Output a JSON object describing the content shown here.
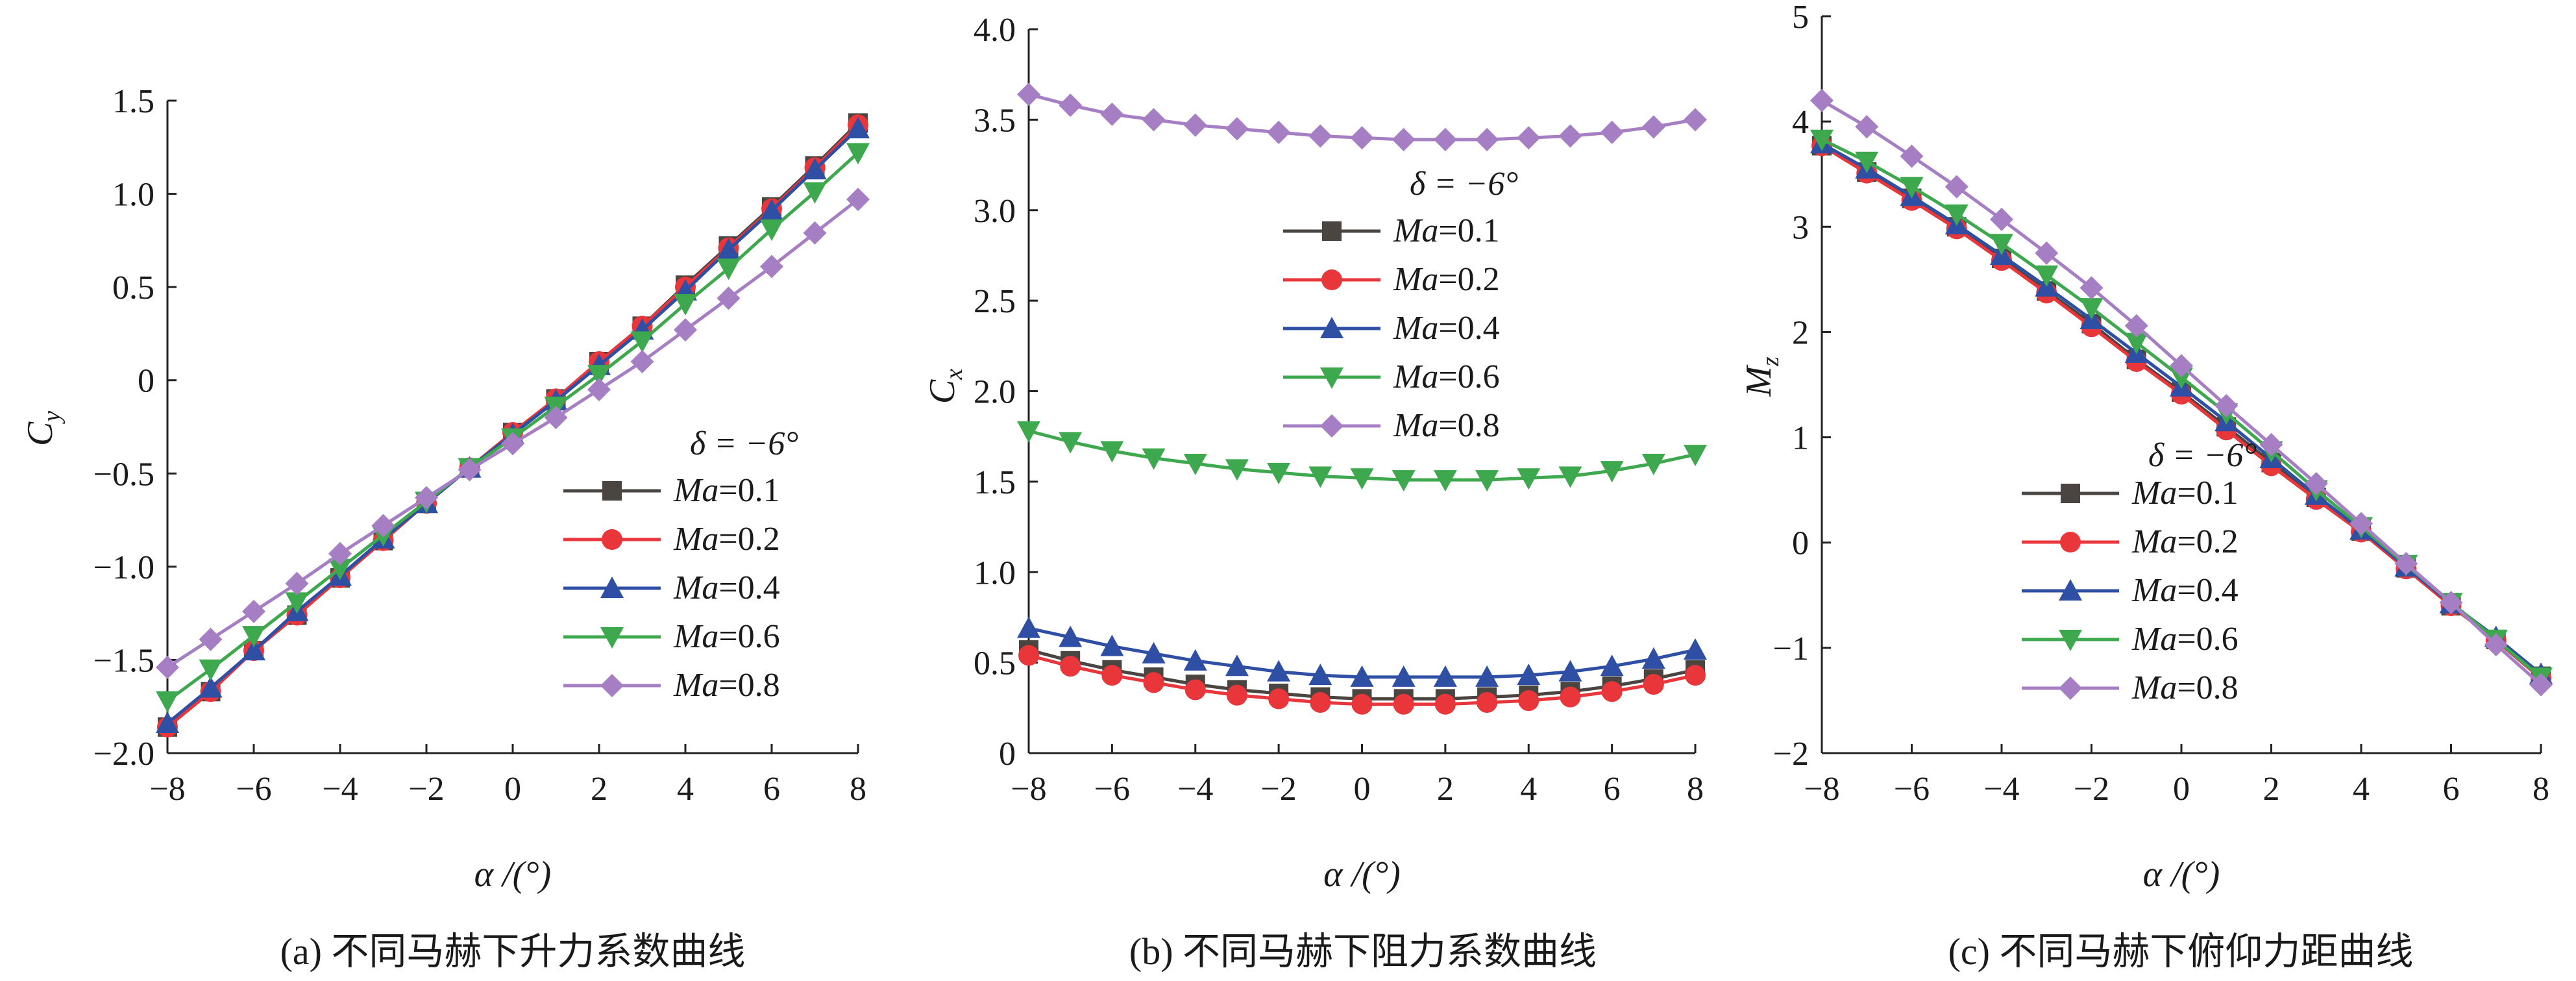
{
  "chart_data": [
    {
      "type": "line",
      "caption": "(a) 不同马赫下升力系数曲线",
      "xlabel": "α /(°)",
      "ylabel_main": "C",
      "ylabel_sub": "y",
      "xlim": [
        -8,
        8
      ],
      "ylim": [
        -2.0,
        1.5
      ],
      "x_ticks": [
        -8,
        -6,
        -4,
        -2,
        0,
        2,
        4,
        6,
        8
      ],
      "x_tick_labels": [
        "−8",
        "−6",
        "−4",
        "−2",
        "0",
        "2",
        "4",
        "6",
        "8"
      ],
      "y_ticks": [
        -2.0,
        -1.5,
        -1.0,
        -0.5,
        0,
        0.5,
        1.0,
        1.5
      ],
      "y_tick_labels": [
        "−2.0",
        "−1.5",
        "−1.0",
        "−0.5",
        "0",
        "0.5",
        "1.0",
        "1.5"
      ],
      "legend_title": "δ = −6°",
      "legend_position": "bottom-right",
      "x": [
        -8,
        -7,
        -6,
        -5,
        -4,
        -3,
        -2,
        -1,
        0,
        1,
        2,
        3,
        4,
        5,
        6,
        7,
        8
      ],
      "series": [
        {
          "name": "Ma=0.1",
          "values": [
            -1.86,
            -1.67,
            -1.45,
            -1.26,
            -1.06,
            -0.86,
            -0.66,
            -0.47,
            -0.28,
            -0.1,
            0.1,
            0.29,
            0.51,
            0.72,
            0.93,
            1.15,
            1.38
          ]
        },
        {
          "name": "Ma=0.2",
          "values": [
            -1.86,
            -1.67,
            -1.45,
            -1.26,
            -1.06,
            -0.86,
            -0.66,
            -0.47,
            -0.28,
            -0.1,
            0.1,
            0.29,
            0.5,
            0.71,
            0.92,
            1.14,
            1.37
          ]
        },
        {
          "name": "Ma=0.4",
          "values": [
            -1.84,
            -1.65,
            -1.45,
            -1.24,
            -1.05,
            -0.85,
            -0.66,
            -0.47,
            -0.29,
            -0.11,
            0.08,
            0.27,
            0.48,
            0.7,
            0.91,
            1.13,
            1.35
          ]
        },
        {
          "name": "Ma=0.6",
          "values": [
            -1.72,
            -1.55,
            -1.37,
            -1.19,
            -1.01,
            -0.83,
            -0.65,
            -0.47,
            -0.31,
            -0.14,
            0.03,
            0.21,
            0.41,
            0.6,
            0.81,
            1.01,
            1.22
          ]
        },
        {
          "name": "Ma=0.8",
          "values": [
            -1.54,
            -1.39,
            -1.24,
            -1.09,
            -0.93,
            -0.78,
            -0.63,
            -0.48,
            -0.34,
            -0.2,
            -0.05,
            0.1,
            0.27,
            0.44,
            0.61,
            0.79,
            0.97
          ]
        }
      ]
    },
    {
      "type": "line",
      "caption": "(b) 不同马赫下阻力系数曲线",
      "xlabel": "α /(°)",
      "ylabel_main": "C",
      "ylabel_sub": "x",
      "xlim": [
        -8,
        8
      ],
      "ylim": [
        0,
        4.0
      ],
      "x_ticks": [
        -8,
        -6,
        -4,
        -2,
        0,
        2,
        4,
        6,
        8
      ],
      "x_tick_labels": [
        "−8",
        "−6",
        "−4",
        "−2",
        "0",
        "2",
        "4",
        "6",
        "8"
      ],
      "y_ticks": [
        0,
        0.5,
        1.0,
        1.5,
        2.0,
        2.5,
        3.0,
        3.5,
        4.0
      ],
      "y_tick_labels": [
        "0",
        "0.5",
        "1.0",
        "1.5",
        "2.0",
        "2.5",
        "3.0",
        "3.5",
        "4.0"
      ],
      "legend_title": "δ = −6°",
      "legend_position": "center-left",
      "x": [
        -8,
        -7,
        -6,
        -5,
        -4,
        -3,
        -2,
        -1,
        0,
        1,
        2,
        3,
        4,
        5,
        6,
        7,
        8
      ],
      "series": [
        {
          "name": "Ma=0.1",
          "values": [
            0.57,
            0.51,
            0.46,
            0.42,
            0.38,
            0.35,
            0.33,
            0.31,
            0.3,
            0.3,
            0.3,
            0.31,
            0.32,
            0.34,
            0.37,
            0.41,
            0.46
          ]
        },
        {
          "name": "Ma=0.2",
          "values": [
            0.54,
            0.48,
            0.43,
            0.39,
            0.35,
            0.32,
            0.3,
            0.28,
            0.27,
            0.27,
            0.27,
            0.28,
            0.29,
            0.31,
            0.34,
            0.38,
            0.43
          ]
        },
        {
          "name": "Ma=0.4",
          "values": [
            0.69,
            0.64,
            0.59,
            0.55,
            0.51,
            0.48,
            0.45,
            0.43,
            0.42,
            0.42,
            0.42,
            0.42,
            0.43,
            0.45,
            0.48,
            0.52,
            0.57
          ]
        },
        {
          "name": "Ma=0.6",
          "values": [
            1.78,
            1.72,
            1.67,
            1.63,
            1.6,
            1.57,
            1.55,
            1.53,
            1.52,
            1.51,
            1.51,
            1.51,
            1.52,
            1.53,
            1.56,
            1.6,
            1.65
          ]
        },
        {
          "name": "Ma=0.8",
          "values": [
            3.64,
            3.58,
            3.53,
            3.5,
            3.47,
            3.45,
            3.43,
            3.41,
            3.4,
            3.39,
            3.39,
            3.39,
            3.4,
            3.41,
            3.43,
            3.46,
            3.5
          ]
        }
      ]
    },
    {
      "type": "line",
      "caption": "(c) 不同马赫下俯仰力距曲线",
      "xlabel": "α /(°)",
      "ylabel_main": "M",
      "ylabel_sub": "z",
      "xlim": [
        -8,
        8
      ],
      "ylim": [
        -2,
        5
      ],
      "x_ticks": [
        -8,
        -6,
        -4,
        -2,
        0,
        2,
        4,
        6,
        8
      ],
      "x_tick_labels": [
        "−8",
        "−6",
        "−4",
        "−2",
        "0",
        "2",
        "4",
        "6",
        "8"
      ],
      "y_ticks": [
        -2,
        -1,
        0,
        1,
        2,
        3,
        4,
        5
      ],
      "y_tick_labels": [
        "−2",
        "−1",
        "0",
        "1",
        "2",
        "3",
        "4",
        "5"
      ],
      "legend_title": "δ = −6°",
      "legend_position": "bottom-left",
      "x": [
        -8,
        -7,
        -6,
        -5,
        -4,
        -3,
        -2,
        -1,
        0,
        1,
        2,
        3,
        4,
        5,
        6,
        7,
        8
      ],
      "series": [
        {
          "name": "Ma=0.1",
          "values": [
            3.77,
            3.52,
            3.27,
            3.0,
            2.7,
            2.39,
            2.08,
            1.74,
            1.43,
            1.1,
            0.76,
            0.43,
            0.11,
            -0.24,
            -0.6,
            -0.92,
            -1.27
          ]
        },
        {
          "name": "Ma=0.2",
          "values": [
            3.77,
            3.51,
            3.25,
            2.98,
            2.68,
            2.37,
            2.05,
            1.72,
            1.41,
            1.07,
            0.73,
            0.41,
            0.1,
            -0.25,
            -0.6,
            -0.93,
            -1.29
          ]
        },
        {
          "name": "Ma=0.4",
          "values": [
            3.79,
            3.55,
            3.29,
            3.02,
            2.73,
            2.43,
            2.12,
            1.8,
            1.48,
            1.15,
            0.8,
            0.45,
            0.12,
            -0.23,
            -0.58,
            -0.9,
            -1.25
          ]
        },
        {
          "name": "Ma=0.6",
          "values": [
            3.83,
            3.62,
            3.38,
            3.12,
            2.84,
            2.54,
            2.23,
            1.9,
            1.57,
            1.23,
            0.87,
            0.5,
            0.15,
            -0.21,
            -0.57,
            -0.92,
            -1.28
          ]
        },
        {
          "name": "Ma=0.8",
          "values": [
            4.2,
            3.95,
            3.67,
            3.38,
            3.07,
            2.75,
            2.42,
            2.06,
            1.68,
            1.3,
            0.93,
            0.56,
            0.18,
            -0.2,
            -0.57,
            -0.97,
            -1.35
          ]
        }
      ]
    }
  ],
  "legend_label_prefix": "Ma",
  "legend_label_values": [
    "=0.1",
    "=0.2",
    "=0.4",
    "=0.6",
    "=0.8"
  ],
  "series_colors": [
    "#4a4541",
    "#e8363a",
    "#2e4fa3",
    "#3ea84f",
    "#a67ec3"
  ],
  "series_markers": [
    "square",
    "circle",
    "triangle-up",
    "triangle-down",
    "diamond"
  ]
}
